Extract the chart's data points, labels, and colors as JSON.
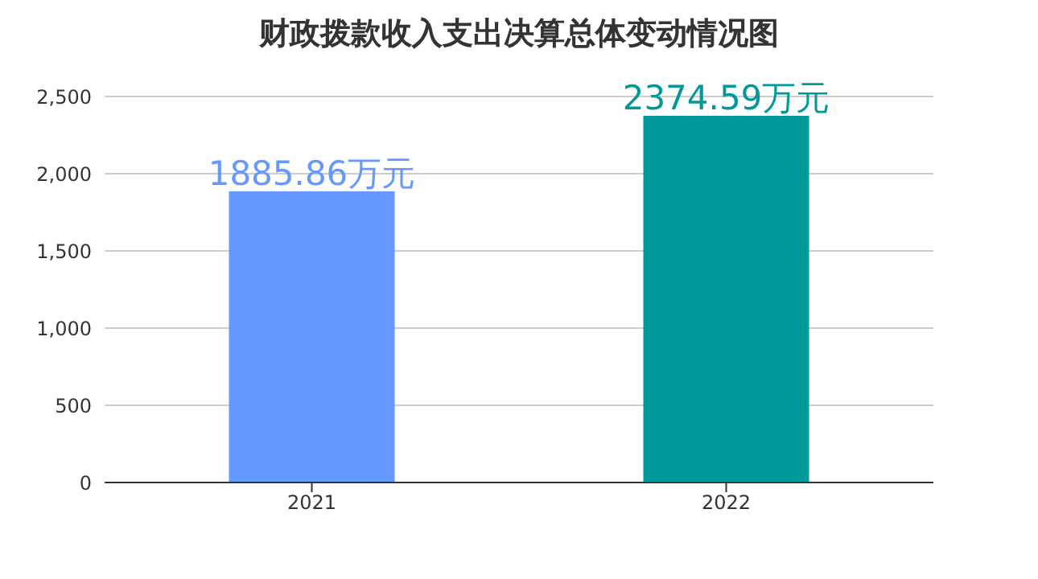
{
  "chart_data": {
    "type": "bar",
    "title": "财政拨款收入支出决算总体变动情况图",
    "categories": [
      "2021",
      "2022"
    ],
    "values": [
      1885.86,
      2374.59
    ],
    "colors": [
      "#6699ff",
      "#009999"
    ],
    "value_labels": [
      "1885.86万元",
      "2374.59万元"
    ],
    "ylim": [
      0,
      2500
    ],
    "yticks": [
      {
        "value": 0,
        "label": "0"
      },
      {
        "value": 500,
        "label": "500"
      },
      {
        "value": 1000,
        "label": "1,000"
      },
      {
        "value": 1500,
        "label": "1,500"
      },
      {
        "value": 2000,
        "label": "2,000"
      },
      {
        "value": 2500,
        "label": "2,500"
      }
    ],
    "grid": "y",
    "legend": false
  }
}
